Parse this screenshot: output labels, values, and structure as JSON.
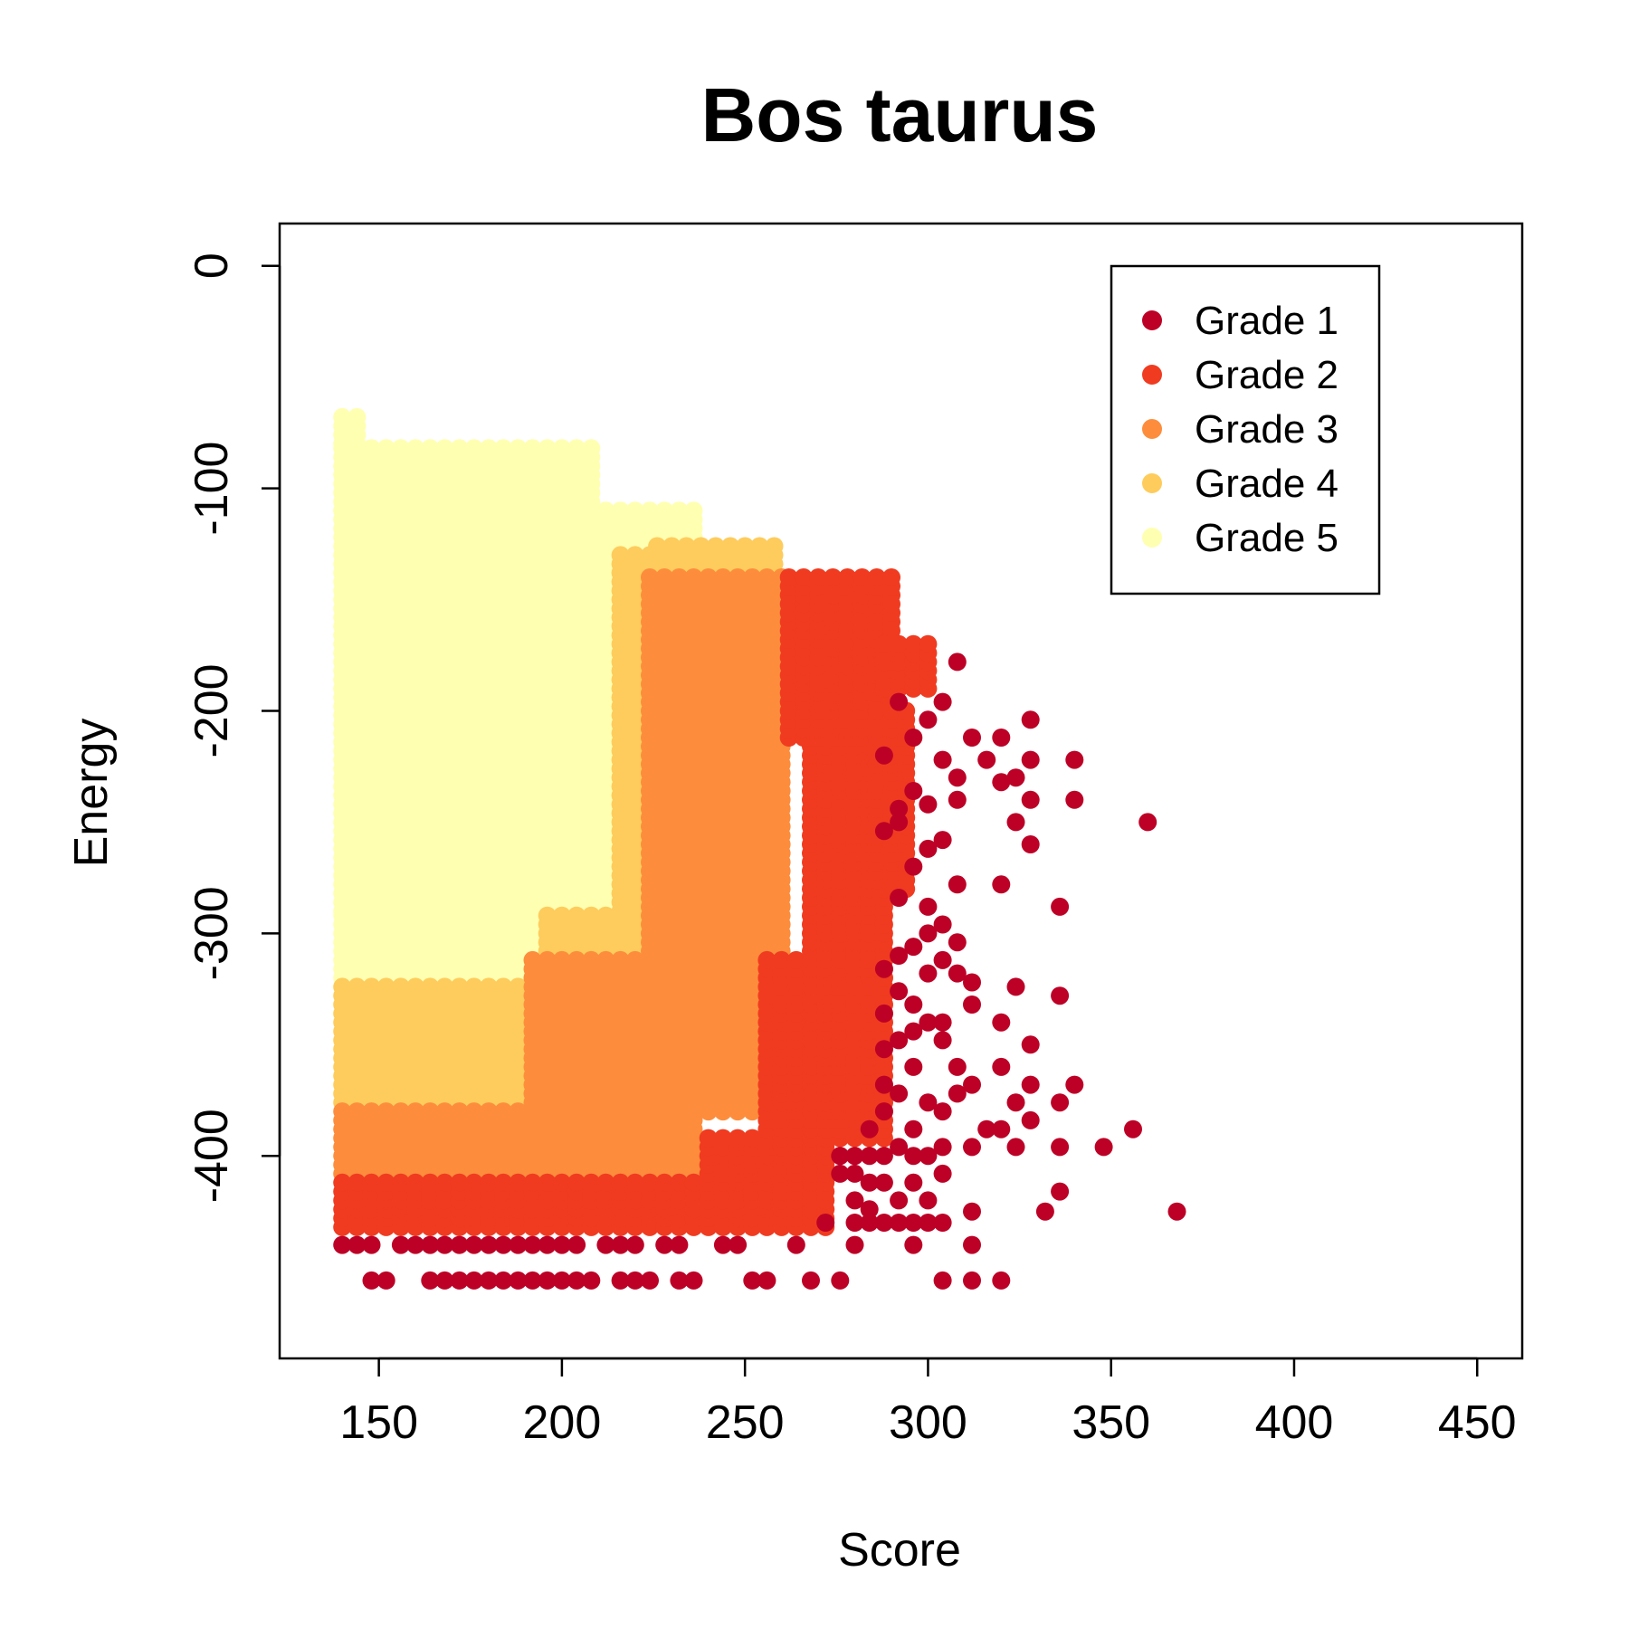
{
  "chart_data": {
    "type": "scatter",
    "title": "Bos taurus",
    "xlabel": "Score",
    "ylabel": "Energy",
    "xlim": [
      122.9,
      462.3
    ],
    "ylim": [
      -491,
      19
    ],
    "xticks": [
      150,
      200,
      250,
      300,
      350,
      400,
      450
    ],
    "yticks": [
      0,
      -100,
      -200,
      -300,
      -400
    ],
    "grid": false,
    "legend_position": "top-right",
    "series": [
      {
        "name": "Grade 1",
        "color": "#BD0026",
        "points": [
          [
            140,
            -440
          ],
          [
            144,
            -440
          ],
          [
            148,
            -440
          ],
          [
            156,
            -440
          ],
          [
            160,
            -440
          ],
          [
            164,
            -440
          ],
          [
            168,
            -440
          ],
          [
            172,
            -440
          ],
          [
            176,
            -440
          ],
          [
            180,
            -440
          ],
          [
            184,
            -440
          ],
          [
            188,
            -440
          ],
          [
            192,
            -440
          ],
          [
            196,
            -440
          ],
          [
            200,
            -440
          ],
          [
            204,
            -440
          ],
          [
            212,
            -440
          ],
          [
            216,
            -440
          ],
          [
            220,
            -440
          ],
          [
            228,
            -440
          ],
          [
            232,
            -440
          ],
          [
            244,
            -440
          ],
          [
            248,
            -440
          ],
          [
            264,
            -440
          ],
          [
            280,
            -440
          ],
          [
            296,
            -440
          ],
          [
            312,
            -440
          ],
          [
            148,
            -456
          ],
          [
            152,
            -456
          ],
          [
            164,
            -456
          ],
          [
            168,
            -456
          ],
          [
            172,
            -456
          ],
          [
            176,
            -456
          ],
          [
            180,
            -456
          ],
          [
            184,
            -456
          ],
          [
            188,
            -456
          ],
          [
            192,
            -456
          ],
          [
            196,
            -456
          ],
          [
            200,
            -456
          ],
          [
            204,
            -456
          ],
          [
            208,
            -456
          ],
          [
            216,
            -456
          ],
          [
            220,
            -456
          ],
          [
            224,
            -456
          ],
          [
            232,
            -456
          ],
          [
            236,
            -456
          ],
          [
            252,
            -456
          ],
          [
            256,
            -456
          ],
          [
            268,
            -456
          ],
          [
            276,
            -456
          ],
          [
            304,
            -456
          ],
          [
            312,
            -456
          ],
          [
            320,
            -456
          ],
          [
            272,
            -430
          ],
          [
            280,
            -430
          ],
          [
            284,
            -430
          ],
          [
            288,
            -430
          ],
          [
            292,
            -430
          ],
          [
            296,
            -430
          ],
          [
            300,
            -430
          ],
          [
            304,
            -430
          ],
          [
            312,
            -425
          ],
          [
            332,
            -425
          ],
          [
            368,
            -425
          ],
          [
            276,
            -400
          ],
          [
            280,
            -400
          ],
          [
            284,
            -400
          ],
          [
            280,
            -408
          ],
          [
            276,
            -408
          ],
          [
            284,
            -412
          ],
          [
            280,
            -420
          ],
          [
            284,
            -424
          ],
          [
            288,
            -412
          ],
          [
            292,
            -420
          ],
          [
            296,
            -412
          ],
          [
            300,
            -420
          ],
          [
            300,
            -400
          ],
          [
            304,
            -408
          ],
          [
            288,
            -400
          ],
          [
            292,
            -396
          ],
          [
            296,
            -400
          ],
          [
            304,
            -396
          ],
          [
            312,
            -396
          ],
          [
            324,
            -396
          ],
          [
            336,
            -396
          ],
          [
            348,
            -396
          ],
          [
            336,
            -416
          ],
          [
            284,
            -388
          ],
          [
            288,
            -380
          ],
          [
            292,
            -372
          ],
          [
            296,
            -388
          ],
          [
            300,
            -376
          ],
          [
            304,
            -380
          ],
          [
            308,
            -372
          ],
          [
            316,
            -388
          ],
          [
            320,
            -388
          ],
          [
            328,
            -384
          ],
          [
            328,
            -368
          ],
          [
            336,
            -376
          ],
          [
            340,
            -368
          ],
          [
            356,
            -388
          ],
          [
            312,
            -368
          ],
          [
            324,
            -376
          ],
          [
            320,
            -360
          ],
          [
            296,
            -360
          ],
          [
            288,
            -368
          ],
          [
            288,
            -352
          ],
          [
            292,
            -348
          ],
          [
            296,
            -344
          ],
          [
            300,
            -340
          ],
          [
            304,
            -348
          ],
          [
            308,
            -360
          ],
          [
            288,
            -336
          ],
          [
            296,
            -332
          ],
          [
            304,
            -340
          ],
          [
            312,
            -332
          ],
          [
            320,
            -340
          ],
          [
            328,
            -350
          ],
          [
            324,
            -324
          ],
          [
            336,
            -328
          ],
          [
            312,
            -322
          ],
          [
            308,
            -318
          ],
          [
            304,
            -312
          ],
          [
            300,
            -318
          ],
          [
            296,
            -306
          ],
          [
            292,
            -310
          ],
          [
            288,
            -316
          ],
          [
            292,
            -326
          ],
          [
            300,
            -300
          ],
          [
            304,
            -296
          ],
          [
            308,
            -304
          ],
          [
            292,
            -284
          ],
          [
            300,
            -288
          ],
          [
            308,
            -278
          ],
          [
            320,
            -278
          ],
          [
            336,
            -288
          ],
          [
            296,
            -270
          ],
          [
            300,
            -262
          ],
          [
            304,
            -258
          ],
          [
            292,
            -250
          ],
          [
            288,
            -254
          ],
          [
            296,
            -236
          ],
          [
            292,
            -244
          ],
          [
            300,
            -242
          ],
          [
            308,
            -240
          ],
          [
            304,
            -222
          ],
          [
            308,
            -230
          ],
          [
            316,
            -222
          ],
          [
            320,
            -232
          ],
          [
            324,
            -250
          ],
          [
            328,
            -240
          ],
          [
            328,
            -260
          ],
          [
            324,
            -230
          ],
          [
            328,
            -222
          ],
          [
            340,
            -240
          ],
          [
            340,
            -222
          ],
          [
            360,
            -250
          ],
          [
            312,
            -212
          ],
          [
            320,
            -212
          ],
          [
            328,
            -204
          ],
          [
            304,
            -196
          ],
          [
            308,
            -178
          ],
          [
            300,
            -204
          ],
          [
            296,
            -212
          ],
          [
            292,
            -196
          ],
          [
            288,
            -220
          ]
        ]
      },
      {
        "name": "Grade 2",
        "color": "#F03B20",
        "points": [],
        "regions": [
          {
            "x": [
              140,
              236
            ],
            "y": [
              -432,
              -412
            ]
          },
          {
            "x": [
              240,
              272
            ],
            "y": [
              -432,
              -392
            ]
          },
          {
            "x": [
              268,
              290
            ],
            "y": [
              -392,
              -212
            ]
          },
          {
            "x": [
              256,
              290
            ],
            "y": [
              -388,
              -312
            ]
          },
          {
            "x": [
              262,
              290
            ],
            "y": [
              -212,
              -140
            ]
          },
          {
            "x": [
              286,
              296
            ],
            "y": [
              -280,
              -200
            ]
          },
          {
            "x": [
              288,
              300
            ],
            "y": [
              -190,
              -170
            ]
          }
        ]
      },
      {
        "name": "Grade 3",
        "color": "#FD8D3C",
        "points": [],
        "regions": [
          {
            "x": [
              140,
              236
            ],
            "y": [
              -408,
              -380
            ]
          },
          {
            "x": [
              192,
              252
            ],
            "y": [
              -380,
              -312
            ]
          },
          {
            "x": [
              224,
              262
            ],
            "y": [
              -312,
              -140
            ]
          },
          {
            "x": [
              250,
              268
            ],
            "y": [
              -210,
              -150
            ]
          },
          {
            "x": [
              270,
              282
            ],
            "y": [
              -180,
              -150
            ]
          }
        ]
      },
      {
        "name": "Grade 4",
        "color": "#FECC5C",
        "points": [],
        "regions": [
          {
            "x": [
              140,
              252
            ],
            "y": [
              -376,
              -324
            ]
          },
          {
            "x": [
              196,
              248
            ],
            "y": [
              -324,
              -290
            ]
          },
          {
            "x": [
              216,
              246
            ],
            "y": [
              -290,
              -130
            ]
          },
          {
            "x": [
              226,
              258
            ],
            "y": [
              -150,
              -126
            ]
          }
        ]
      },
      {
        "name": "Grade 5",
        "color": "#FFFFB2",
        "points": [],
        "regions": [
          {
            "x": [
              140,
              210
            ],
            "y": [
              -320,
              -290
            ]
          },
          {
            "x": [
              140,
              236
            ],
            "y": [
              -290,
              -110
            ]
          },
          {
            "x": [
              140,
              210
            ],
            "y": [
              -110,
              -80
            ]
          },
          {
            "x": [
              140,
              144
            ],
            "y": [
              -80,
              -68
            ]
          }
        ]
      }
    ]
  }
}
